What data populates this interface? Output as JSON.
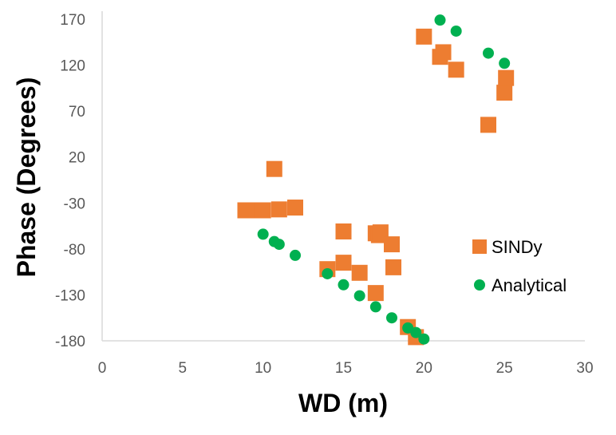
{
  "chart_data": {
    "type": "scatter",
    "title": "",
    "xlabel": "WD (m)",
    "ylabel": "Phase (Degrees)",
    "xlim": [
      0,
      30
    ],
    "ylim": [
      -180,
      170
    ],
    "x_ticks": [
      0,
      5,
      10,
      15,
      20,
      25,
      30
    ],
    "y_ticks": [
      170,
      120,
      70,
      20,
      -30,
      -80,
      -130,
      -180
    ],
    "grid": false,
    "legend_position": "right",
    "colors": {
      "sindy": "#ED7D31",
      "analytical": "#00B050",
      "axis": "#D9D9D9"
    },
    "series": [
      {
        "name": "SINDy",
        "marker": "square",
        "points": [
          [
            8.9,
            -38
          ],
          [
            9.5,
            -38
          ],
          [
            10.0,
            -38
          ],
          [
            11.0,
            -37
          ],
          [
            12.0,
            -35
          ],
          [
            10.7,
            7
          ],
          [
            14.0,
            -102
          ],
          [
            15.0,
            -95
          ],
          [
            15.0,
            -61
          ],
          [
            16.0,
            -106
          ],
          [
            17.0,
            -63
          ],
          [
            17.2,
            -65
          ],
          [
            17.3,
            -62
          ],
          [
            18.0,
            -75
          ],
          [
            18.1,
            -100
          ],
          [
            17.0,
            -128
          ],
          [
            19.0,
            -165
          ],
          [
            19.5,
            -176
          ],
          [
            20.0,
            151
          ],
          [
            21.0,
            129
          ],
          [
            21.2,
            134
          ],
          [
            22.0,
            115
          ],
          [
            24.0,
            55
          ],
          [
            25.0,
            90
          ],
          [
            25.1,
            106
          ]
        ]
      },
      {
        "name": "Analytical",
        "marker": "circle",
        "points": [
          [
            10.0,
            -64
          ],
          [
            10.7,
            -72
          ],
          [
            11.0,
            -75
          ],
          [
            12.0,
            -87
          ],
          [
            14.0,
            -107
          ],
          [
            15.0,
            -119
          ],
          [
            16.0,
            -131
          ],
          [
            17.0,
            -143
          ],
          [
            18.0,
            -155
          ],
          [
            19.0,
            -166
          ],
          [
            19.5,
            -171
          ],
          [
            20.0,
            -178
          ],
          [
            21.0,
            169
          ],
          [
            22.0,
            157
          ],
          [
            24.0,
            133
          ],
          [
            25.0,
            122
          ]
        ]
      }
    ]
  }
}
